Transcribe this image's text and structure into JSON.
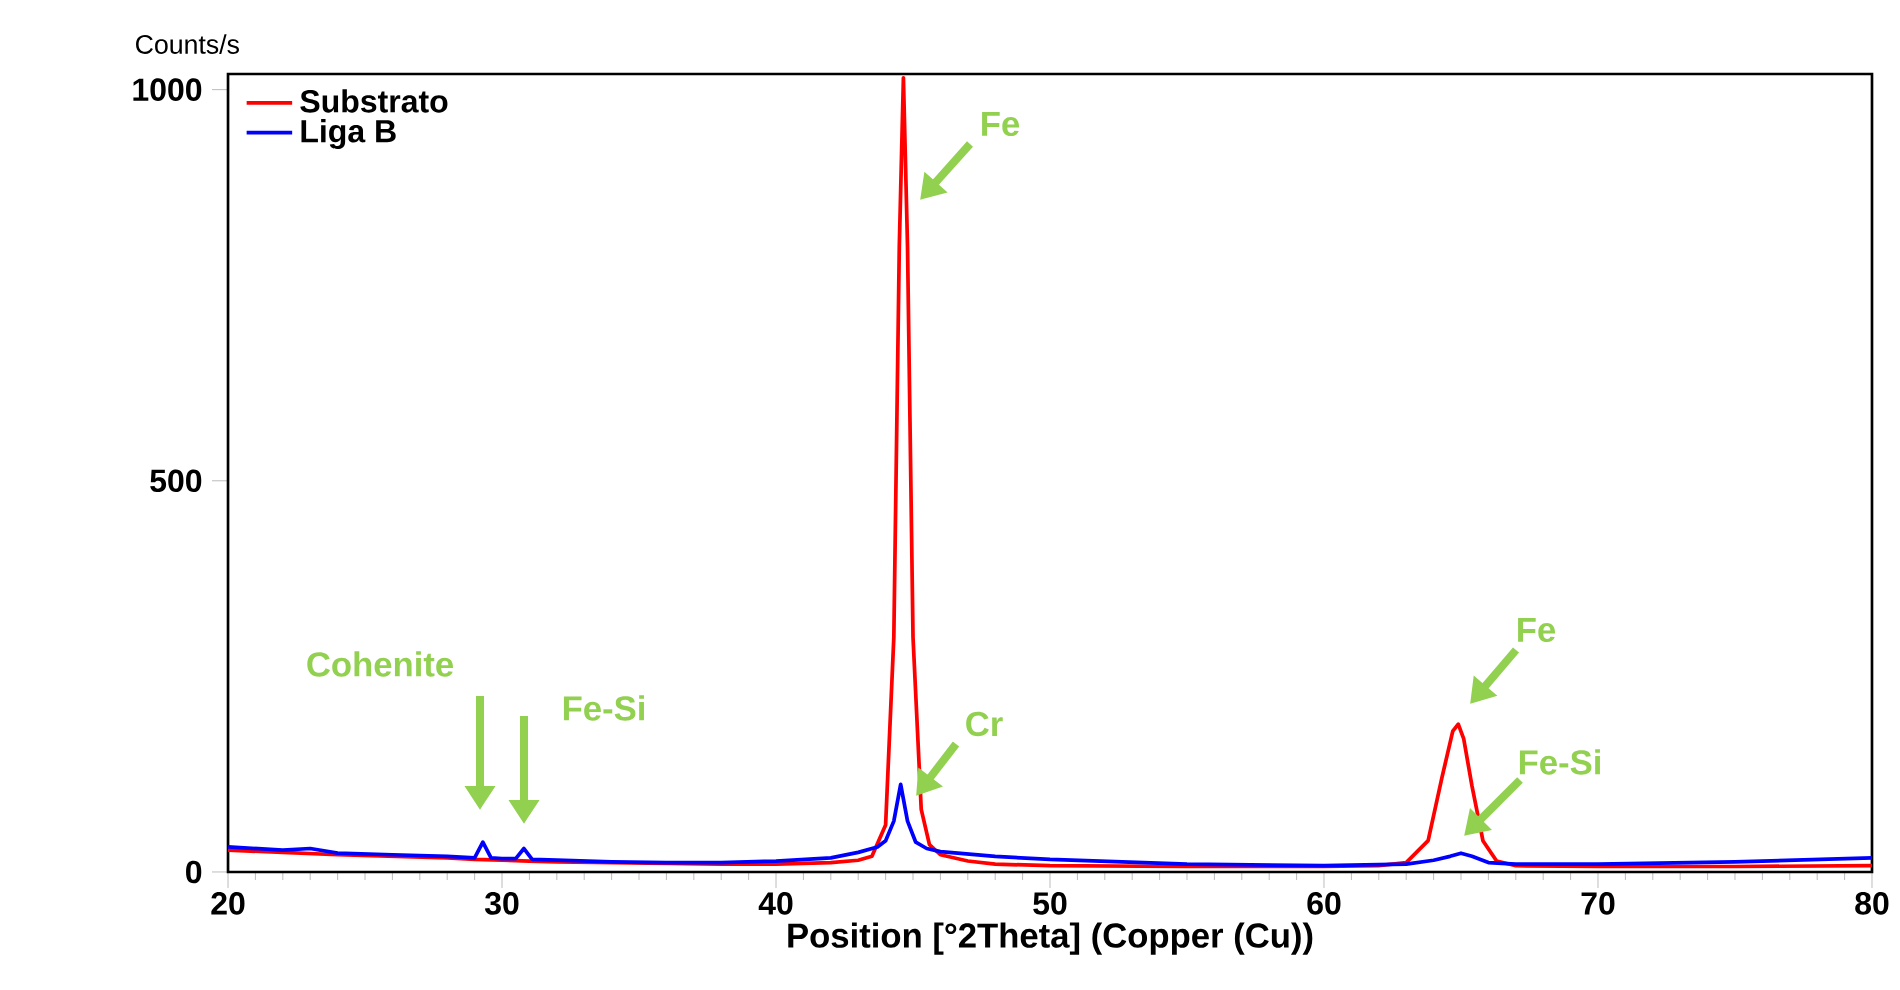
{
  "chart_data": {
    "type": "line",
    "xlabel": "Position [°2Theta] (Copper (Cu))",
    "ylabel": "Counts/s",
    "xlim": [
      20,
      80
    ],
    "ylim": [
      0,
      1020
    ],
    "xticks": [
      20,
      30,
      40,
      50,
      60,
      70,
      80
    ],
    "yticks": [
      0,
      500,
      1000
    ],
    "legend": "top left",
    "grid": false,
    "marker": "none",
    "line_style": "solid",
    "series": [
      {
        "name": "Substrato",
        "color": "#ff0000",
        "x": [
          20,
          22,
          24,
          26,
          28,
          29,
          30,
          31,
          32,
          34,
          36,
          38,
          40,
          42,
          43,
          43.5,
          44.0,
          44.3,
          44.5,
          44.65,
          44.8,
          45.0,
          45.3,
          45.6,
          46,
          47,
          48,
          50,
          55,
          60,
          62,
          63,
          63.8,
          64.3,
          64.7,
          64.9,
          65.1,
          65.4,
          65.8,
          66.3,
          67,
          70,
          75,
          80
        ],
        "values": [
          28,
          25,
          22,
          20,
          18,
          16,
          15,
          14,
          13,
          12,
          11,
          10,
          10,
          12,
          15,
          20,
          60,
          300,
          800,
          1015,
          800,
          300,
          80,
          35,
          22,
          14,
          10,
          8,
          7,
          7,
          8,
          12,
          40,
          120,
          180,
          189,
          170,
          110,
          40,
          14,
          8,
          7,
          7,
          8
        ]
      },
      {
        "name": "Liga B",
        "color": "#0000ff",
        "x": [
          20,
          22,
          23,
          24,
          26,
          28,
          29,
          29.3,
          29.6,
          30,
          30.5,
          30.8,
          31.1,
          32,
          34,
          36,
          38,
          40,
          42,
          43,
          43.7,
          44.0,
          44.3,
          44.55,
          44.8,
          45.1,
          45.5,
          46,
          48,
          50,
          55,
          60,
          63,
          64,
          64.6,
          65,
          65.4,
          66,
          67,
          70,
          75,
          80
        ],
        "values": [
          32,
          28,
          30,
          24,
          22,
          20,
          18,
          38,
          18,
          17,
          17,
          30,
          16,
          15,
          13,
          12,
          12,
          14,
          18,
          25,
          32,
          40,
          65,
          112,
          65,
          38,
          30,
          26,
          20,
          16,
          10,
          8,
          10,
          15,
          20,
          24,
          20,
          12,
          10,
          10,
          13,
          18
        ]
      }
    ],
    "annotations": [
      "Fe",
      "Cr",
      "Cohenite",
      "Fe-Si",
      "Fe",
      "Fe-Si"
    ]
  }
}
